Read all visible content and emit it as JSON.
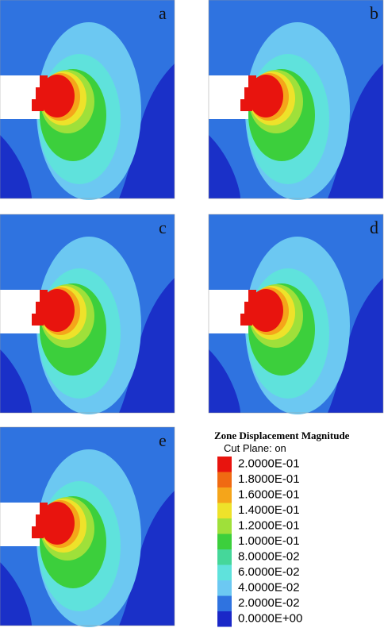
{
  "panels": [
    {
      "label": "a"
    },
    {
      "label": "b"
    },
    {
      "label": "c"
    },
    {
      "label": "d"
    },
    {
      "label": "e"
    }
  ],
  "legend": {
    "title": "Zone Displacement Magnitude",
    "subtitle": "Cut Plane: on",
    "entries": [
      {
        "label": "2.0000E-01",
        "color": "#e8140e"
      },
      {
        "label": "1.8000E-01",
        "color": "#f06a12"
      },
      {
        "label": "1.6000E-01",
        "color": "#f5a51a"
      },
      {
        "label": "1.4000E-01",
        "color": "#eee22a"
      },
      {
        "label": "1.2000E-01",
        "color": "#9fe03a"
      },
      {
        "label": "1.0000E-01",
        "color": "#3ccf3c"
      },
      {
        "label": "8.0000E-02",
        "color": "#45d79a"
      },
      {
        "label": "6.0000E-02",
        "color": "#5fe2dc"
      },
      {
        "label": "4.0000E-02",
        "color": "#6cc8f2"
      },
      {
        "label": "2.0000E-02",
        "color": "#2f73e0"
      },
      {
        "label": "0.0000E+00",
        "color": "#1a28c8"
      }
    ]
  }
}
